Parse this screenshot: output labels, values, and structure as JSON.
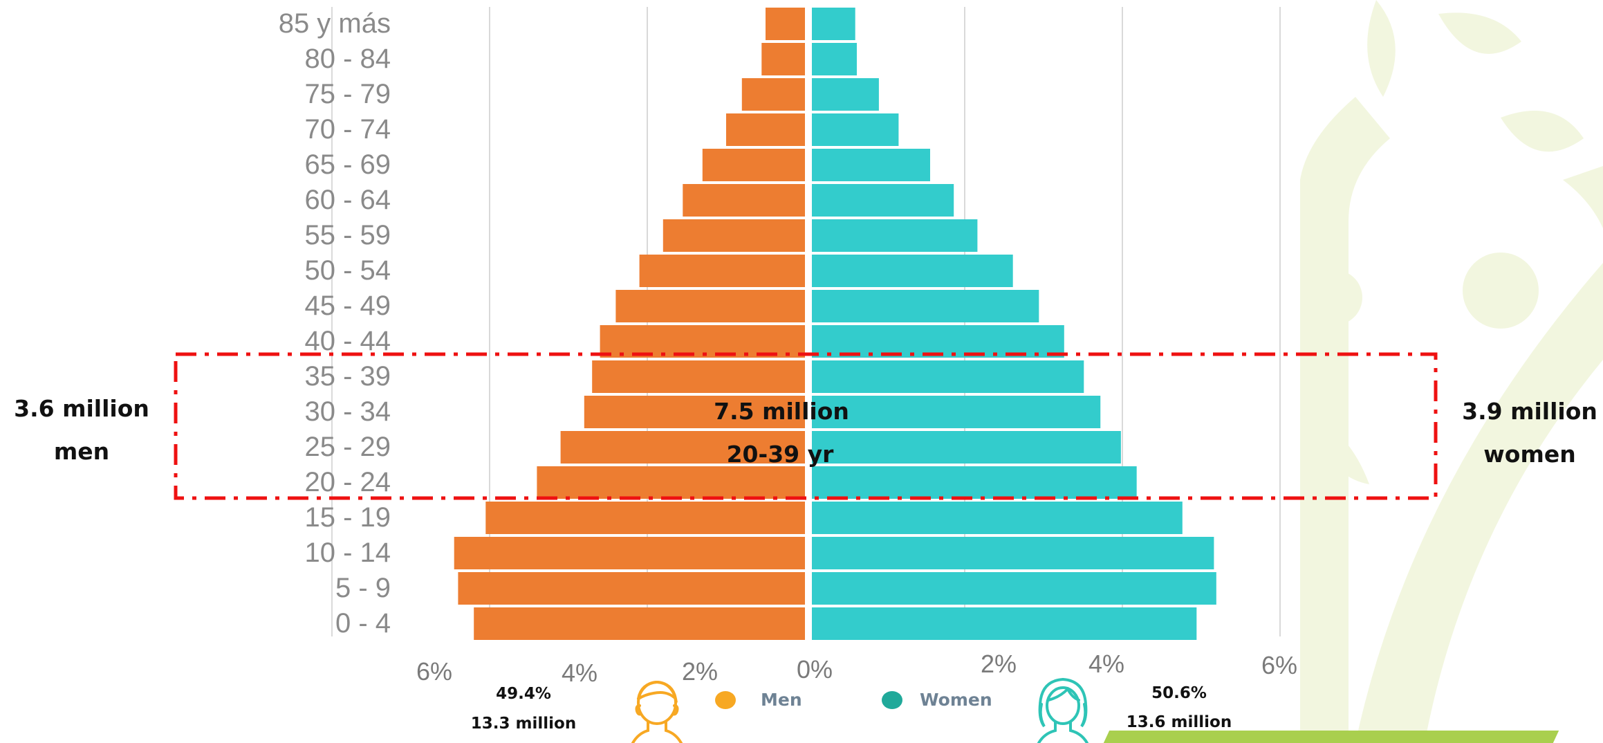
{
  "colors": {
    "men": "#ed7d31",
    "women": "#33cccc",
    "highlight": "#ee1111",
    "leaf": "#f2f6df",
    "bar_stripe": "#a9cf4e",
    "men_icon": "#f7a823",
    "women_icon": "#2ec4b6"
  },
  "chart_data": {
    "type": "bar",
    "orientation": "horizontal",
    "categories": [
      "85 y más",
      "80 -  84",
      "75 -  79",
      "70 -  74",
      "65 -  69",
      "60 -  64",
      "55 -  59",
      "50 -  54",
      "45 -  49",
      "40 -  44",
      "35 -  39",
      "30 -  34",
      "25 -  29",
      "20 -  24",
      "15 -  19",
      "10 - 14",
      "5 - 9",
      "0 - 4"
    ],
    "series": [
      {
        "name": "Men",
        "side": "left",
        "values": [
          0.5,
          0.55,
          0.8,
          1.0,
          1.3,
          1.55,
          1.8,
          2.1,
          2.4,
          2.6,
          2.7,
          2.8,
          3.1,
          3.4,
          4.05,
          4.45,
          4.4,
          4.2
        ]
      },
      {
        "name": "Women",
        "side": "right",
        "values": [
          0.55,
          0.57,
          0.85,
          1.1,
          1.5,
          1.8,
          2.1,
          2.55,
          2.88,
          3.2,
          3.45,
          3.66,
          3.92,
          4.12,
          4.7,
          5.1,
          5.13,
          4.88
        ]
      }
    ],
    "x_ticks_left": [
      "6%",
      "4%",
      "2%",
      "0%"
    ],
    "x_ticks_right": [
      "2%",
      "4%",
      "6%"
    ],
    "xlim": [
      -6,
      6
    ],
    "grid": true
  },
  "highlight": {
    "left_value": "3.6 million",
    "left_label": "men",
    "right_value": "3.9 million",
    "right_label": "women",
    "center_value": "7.5 million",
    "center_range": "20-39 yr"
  },
  "legend": {
    "men": "Men",
    "women": "Women"
  },
  "totals": {
    "men_percent": "49.4%",
    "men_total": "13.3 million",
    "women_percent": "50.6%",
    "women_total": "13.6 million"
  }
}
